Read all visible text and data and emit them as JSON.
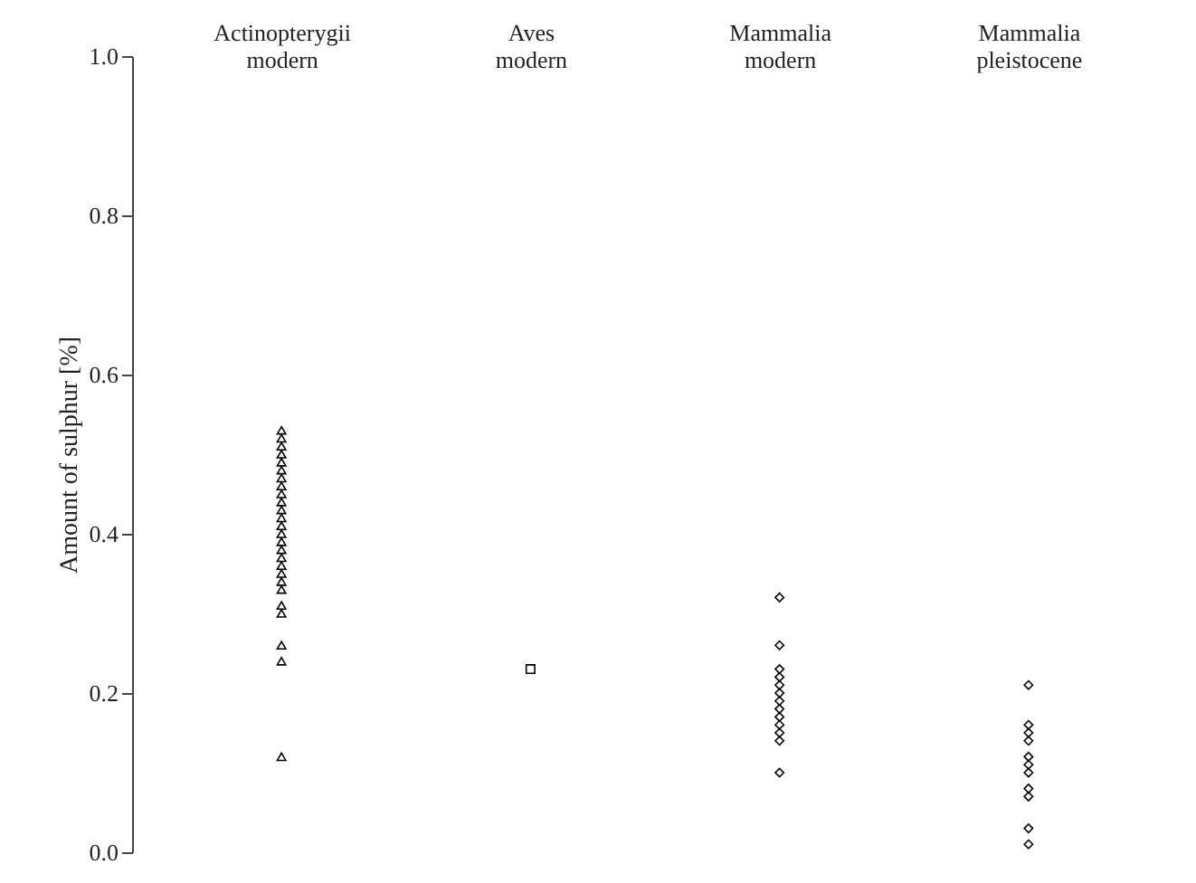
{
  "chart_data": {
    "type": "scatter",
    "ylabel": "Amount of sulphur [%]",
    "categories": [
      "Actinopterygii\nmodern",
      "Aves\nmodern",
      "Mammalia\nmodern",
      "Mammalia\npleistocene"
    ],
    "series": [
      {
        "marker": "triangle",
        "color": "#000000",
        "x": [
          "Actinopterygii\nmodern",
          "Actinopterygii\nmodern",
          "Actinopterygii\nmodern",
          "Actinopterygii\nmodern",
          "Actinopterygii\nmodern",
          "Actinopterygii\nmodern",
          "Actinopterygii\nmodern",
          "Actinopterygii\nmodern",
          "Actinopterygii\nmodern",
          "Actinopterygii\nmodern",
          "Actinopterygii\nmodern",
          "Actinopterygii\nmodern",
          "Actinopterygii\nmodern",
          "Actinopterygii\nmodern",
          "Actinopterygii\nmodern",
          "Actinopterygii\nmodern",
          "Actinopterygii\nmodern",
          "Actinopterygii\nmodern",
          "Actinopterygii\nmodern",
          "Actinopterygii\nmodern",
          "Actinopterygii\nmodern",
          "Actinopterygii\nmodern",
          "Actinopterygii\nmodern",
          "Actinopterygii\nmodern",
          "Actinopterygii\nmodern",
          "Actinopterygii\nmodern"
        ],
        "values": [
          0.53,
          0.52,
          0.51,
          0.5,
          0.49,
          0.48,
          0.47,
          0.46,
          0.45,
          0.44,
          0.43,
          0.42,
          0.41,
          0.4,
          0.39,
          0.38,
          0.37,
          0.36,
          0.35,
          0.34,
          0.33,
          0.31,
          0.3,
          0.26,
          0.24,
          0.12
        ]
      },
      {
        "marker": "square",
        "color": "#000000",
        "x": [
          "Aves\nmodern"
        ],
        "values": [
          0.23
        ]
      },
      {
        "marker": "diamond",
        "color": "#000000",
        "x": [
          "Mammalia\nmodern",
          "Mammalia\nmodern",
          "Mammalia\nmodern",
          "Mammalia\nmodern",
          "Mammalia\nmodern",
          "Mammalia\nmodern",
          "Mammalia\nmodern",
          "Mammalia\nmodern",
          "Mammalia\nmodern",
          "Mammalia\nmodern",
          "Mammalia\nmodern",
          "Mammalia\nmodern",
          "Mammalia\nmodern"
        ],
        "values": [
          0.32,
          0.26,
          0.23,
          0.22,
          0.21,
          0.2,
          0.19,
          0.18,
          0.17,
          0.16,
          0.15,
          0.14,
          0.1
        ]
      },
      {
        "marker": "diamond",
        "color": "#000000",
        "x": [
          "Mammalia\npleistocene",
          "Mammalia\npleistocene",
          "Mammalia\npleistocene",
          "Mammalia\npleistocene",
          "Mammalia\npleistocene",
          "Mammalia\npleistocene",
          "Mammalia\npleistocene",
          "Mammalia\npleistocene",
          "Mammalia\npleistocene",
          "Mammalia\npleistocene",
          "Mammalia\npleistocene"
        ],
        "values": [
          0.21,
          0.16,
          0.15,
          0.14,
          0.12,
          0.11,
          0.1,
          0.08,
          0.07,
          0.03,
          0.01
        ]
      }
    ],
    "ylim": [
      0,
      1
    ],
    "yticks": [
      {
        "value": 0,
        "label": "0.0"
      },
      {
        "value": 0.2,
        "label": "0.2"
      },
      {
        "value": 0.4,
        "label": "0.4"
      },
      {
        "value": 0.6,
        "label": "0.6"
      },
      {
        "value": 0.8,
        "label": "0.8"
      },
      {
        "value": 1,
        "label": "1.0"
      }
    ],
    "grid": false
  }
}
